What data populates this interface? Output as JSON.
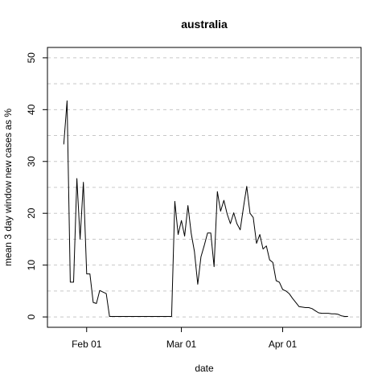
{
  "chart_data": {
    "type": "line",
    "title": "australia",
    "xlabel": "date",
    "ylabel": "mean  3  day window new cases as %",
    "x_tick_labels": [
      "Feb 01",
      "Mar 01",
      "Apr 01"
    ],
    "x_tick_dates": [
      "2020-02-01",
      "2020-03-01",
      "2020-04-01"
    ],
    "xlim": [
      "2020-01-20",
      "2020-04-25"
    ],
    "y_ticks": [
      0,
      10,
      20,
      30,
      40,
      50
    ],
    "ylim": [
      -2,
      52
    ],
    "grid": "horizontal dashed",
    "series": [
      {
        "x": [
          "2020-01-25",
          "2020-01-26",
          "2020-01-27",
          "2020-01-28",
          "2020-01-29",
          "2020-01-30",
          "2020-01-31",
          "2020-02-01",
          "2020-02-02",
          "2020-02-03",
          "2020-02-04",
          "2020-02-05",
          "2020-02-06",
          "2020-02-07",
          "2020-02-08",
          "2020-02-09",
          "2020-02-10",
          "2020-02-11",
          "2020-02-12",
          "2020-02-13",
          "2020-02-14",
          "2020-02-15",
          "2020-02-16",
          "2020-02-17",
          "2020-02-18",
          "2020-02-19",
          "2020-02-20",
          "2020-02-21",
          "2020-02-22",
          "2020-02-23",
          "2020-02-24",
          "2020-02-25",
          "2020-02-26",
          "2020-02-27",
          "2020-02-28",
          "2020-02-29",
          "2020-03-01",
          "2020-03-02",
          "2020-03-03",
          "2020-03-04",
          "2020-03-05",
          "2020-03-06",
          "2020-03-07",
          "2020-03-08",
          "2020-03-09",
          "2020-03-10",
          "2020-03-11",
          "2020-03-12",
          "2020-03-13",
          "2020-03-14",
          "2020-03-15",
          "2020-03-16",
          "2020-03-17",
          "2020-03-18",
          "2020-03-19",
          "2020-03-20",
          "2020-03-21",
          "2020-03-22",
          "2020-03-23",
          "2020-03-24",
          "2020-03-25",
          "2020-03-26",
          "2020-03-27",
          "2020-03-28",
          "2020-03-29",
          "2020-03-30",
          "2020-03-31",
          "2020-04-01",
          "2020-04-02",
          "2020-04-03",
          "2020-04-04",
          "2020-04-05",
          "2020-04-06",
          "2020-04-07",
          "2020-04-08",
          "2020-04-09",
          "2020-04-10",
          "2020-04-11",
          "2020-04-12",
          "2020-04-13",
          "2020-04-14",
          "2020-04-15",
          "2020-04-16",
          "2020-04-17",
          "2020-04-18",
          "2020-04-19",
          "2020-04-20",
          "2020-04-21"
        ],
        "y": [
          33.3,
          41.7,
          6.7,
          6.7,
          26.7,
          15.0,
          26.0,
          8.3,
          8.3,
          2.8,
          2.6,
          5.1,
          4.8,
          4.5,
          0.1,
          0.1,
          0.1,
          0.1,
          0.1,
          0.1,
          0.1,
          0.1,
          0.1,
          0.1,
          0.1,
          0.1,
          0.1,
          0.1,
          0.1,
          0.1,
          0.1,
          0.1,
          0.1,
          0.1,
          22.3,
          15.9,
          18.6,
          15.6,
          21.5,
          16.1,
          12.6,
          6.3,
          11.6,
          13.8,
          16.2,
          16.2,
          9.7,
          24.2,
          20.4,
          22.5,
          19.9,
          18.0,
          20.1,
          18.0,
          16.8,
          21.2,
          25.2,
          20.0,
          19.2,
          14.2,
          15.9,
          13.1,
          13.7,
          11.0,
          10.5,
          7.0,
          6.7,
          5.3,
          5.0,
          4.5,
          3.6,
          2.8,
          2.0,
          1.9,
          1.8,
          1.8,
          1.6,
          1.2,
          0.8,
          0.7,
          0.7,
          0.7,
          0.6,
          0.6,
          0.5,
          0.2,
          0.1,
          0.1
        ]
      }
    ]
  }
}
